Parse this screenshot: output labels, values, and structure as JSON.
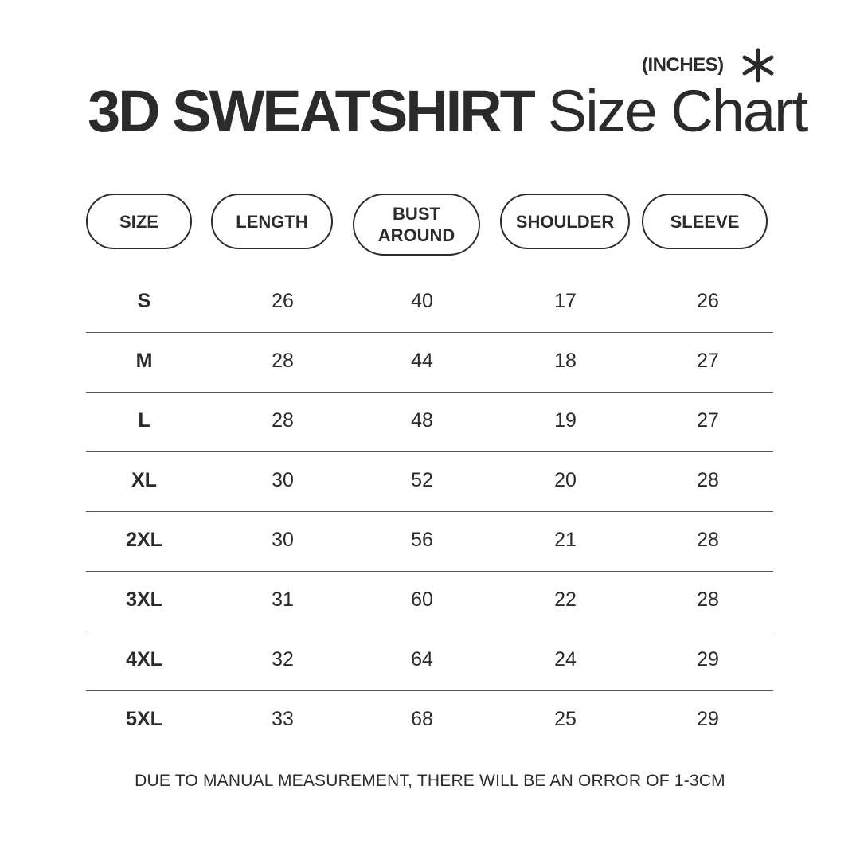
{
  "header": {
    "unit": "(INCHES)",
    "title_bold": "3D SWEATSHIRT",
    "title_light": "Size Chart",
    "unit_icon": "asterisk-icon"
  },
  "columns": [
    "SIZE",
    "LENGTH",
    "BUST AROUND",
    "SHOULDER",
    "SLEEVE"
  ],
  "rows": [
    [
      "S",
      "26",
      "40",
      "17",
      "26"
    ],
    [
      "M",
      "28",
      "44",
      "18",
      "27"
    ],
    [
      "L",
      "28",
      "48",
      "19",
      "27"
    ],
    [
      "XL",
      "30",
      "52",
      "20",
      "28"
    ],
    [
      "2XL",
      "30",
      "56",
      "21",
      "28"
    ],
    [
      "3XL",
      "31",
      "60",
      "22",
      "28"
    ],
    [
      "4XL",
      "32",
      "64",
      "24",
      "29"
    ],
    [
      "5XL",
      "33",
      "68",
      "25",
      "29"
    ]
  ],
  "footnote": "DUE TO MANUAL MEASUREMENT, THERE WILL BE AN ORROR OF 1-3CM",
  "colors": {
    "text": "#2b2b2b",
    "background": "#ffffff"
  }
}
